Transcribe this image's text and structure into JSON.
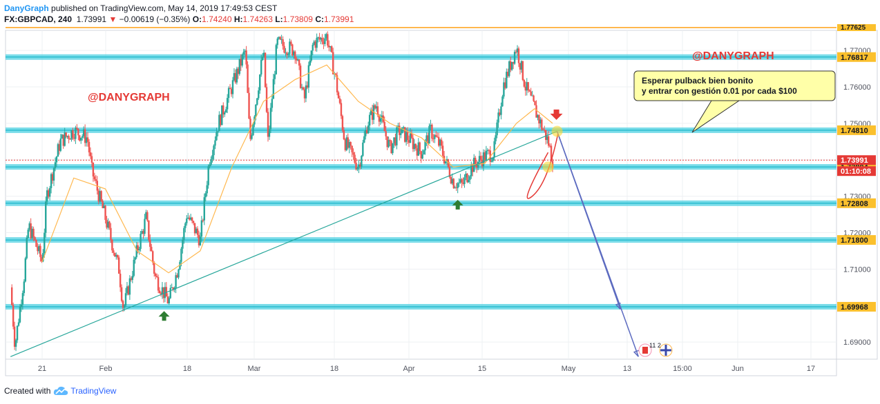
{
  "header": {
    "author": "DanyGraph",
    "published_text": "published on TradingView.com, May 14, 2019 17:49:53 CEST",
    "symbol": "FX:GBPCAD, 240",
    "last": "1.73991",
    "change": "−0.00619 (−0.35%)",
    "ohlc": {
      "o_label": "O:",
      "o": "1.74240",
      "h_label": "H:",
      "h": "1.74263",
      "l_label": "L:",
      "l": "1.73809",
      "c_label": "C:",
      "c": "1.73991"
    }
  },
  "footer": {
    "created_with": "Created with",
    "brand": "TradingView"
  },
  "colors": {
    "up": "#26a69a",
    "down": "#ef5350",
    "ma": "#ffb74d",
    "zone": "#4dd0e1",
    "trend": "#26a69a",
    "projection": "#5c6bc0",
    "price_line": "#e53935",
    "label_bg": "#ffffa8"
  },
  "chart_data": {
    "type": "candlestick",
    "symbol": "FX:GBPCAD",
    "timeframe": "240",
    "x_tick_labels": [
      "21",
      "Feb",
      "18",
      "Mar",
      "18",
      "Apr",
      "15",
      "May",
      "13",
      "15:00",
      "Jun",
      "17"
    ],
    "y_tick_labels": [
      "1.69000",
      "1.70000",
      "1.71000",
      "1.72000",
      "1.73000",
      "1.74000",
      "1.75000",
      "1.76000",
      "1.77000"
    ],
    "ylim": [
      1.6853,
      1.7755
    ],
    "horizontal_levels": [
      {
        "value": 1.76817,
        "label": "1.76817",
        "style": "zone"
      },
      {
        "value": 1.7481,
        "label": "1.74810",
        "style": "zone"
      },
      {
        "value": 1.73804,
        "label": "1.73804",
        "style": "zone"
      },
      {
        "value": 1.72808,
        "label": "1.72808",
        "style": "zone"
      },
      {
        "value": 1.718,
        "label": "1.71800",
        "style": "zone"
      },
      {
        "value": 1.69968,
        "label": "1.69968",
        "style": "zone"
      },
      {
        "value": 1.77625,
        "label": "1.77625",
        "style": "top-line"
      }
    ],
    "current_price": {
      "value": 1.73991,
      "label": "1.73991"
    },
    "countdown": "01:10:08",
    "price_path": [
      [
        "2019-01-14",
        1.705
      ],
      [
        "2019-01-15",
        1.689
      ],
      [
        "2019-01-17",
        1.708
      ],
      [
        "2019-01-18",
        1.722
      ],
      [
        "2019-01-21",
        1.712
      ],
      [
        "2019-01-22",
        1.73
      ],
      [
        "2019-01-25",
        1.745
      ],
      [
        "2019-01-28",
        1.748
      ],
      [
        "2019-01-31",
        1.746
      ],
      [
        "2019-02-01",
        1.737
      ],
      [
        "2019-02-04",
        1.724
      ],
      [
        "2019-02-07",
        1.71
      ],
      [
        "2019-02-08",
        1.699
      ],
      [
        "2019-02-11",
        1.715
      ],
      [
        "2019-02-13",
        1.724
      ],
      [
        "2019-02-15",
        1.708
      ],
      [
        "2019-02-18",
        1.701
      ],
      [
        "2019-02-20",
        1.71
      ],
      [
        "2019-02-22",
        1.725
      ],
      [
        "2019-02-25",
        1.718
      ],
      [
        "2019-02-27",
        1.74
      ],
      [
        "2019-03-01",
        1.75
      ],
      [
        "2019-03-04",
        1.76
      ],
      [
        "2019-03-07",
        1.77
      ],
      [
        "2019-03-08",
        1.745
      ],
      [
        "2019-03-11",
        1.77
      ],
      [
        "2019-03-12",
        1.745
      ],
      [
        "2019-03-14",
        1.772
      ],
      [
        "2019-03-18",
        1.77
      ],
      [
        "2019-03-20",
        1.756
      ],
      [
        "2019-03-22",
        1.772
      ],
      [
        "2019-03-25",
        1.774
      ],
      [
        "2019-03-27",
        1.762
      ],
      [
        "2019-03-29",
        1.745
      ],
      [
        "2019-04-01",
        1.738
      ],
      [
        "2019-04-03",
        1.75
      ],
      [
        "2019-04-05",
        1.755
      ],
      [
        "2019-04-08",
        1.743
      ],
      [
        "2019-04-10",
        1.748
      ],
      [
        "2019-04-12",
        1.746
      ],
      [
        "2019-04-15",
        1.742
      ],
      [
        "2019-04-17",
        1.748
      ],
      [
        "2019-04-19",
        1.744
      ],
      [
        "2019-04-22",
        1.734
      ],
      [
        "2019-04-24",
        1.733
      ],
      [
        "2019-04-26",
        1.738
      ],
      [
        "2019-04-29",
        1.741
      ],
      [
        "2019-05-01",
        1.742
      ],
      [
        "2019-05-03",
        1.76
      ],
      [
        "2019-05-06",
        1.771
      ],
      [
        "2019-05-08",
        1.76
      ],
      [
        "2019-05-10",
        1.754
      ],
      [
        "2019-05-13",
        1.745
      ],
      [
        "2019-05-14",
        1.7399
      ]
    ],
    "moving_average": [
      [
        "2019-01-21",
        1.712
      ],
      [
        "2019-01-28",
        1.735
      ],
      [
        "2019-02-04",
        1.732
      ],
      [
        "2019-02-11",
        1.715
      ],
      [
        "2019-02-18",
        1.709
      ],
      [
        "2019-02-25",
        1.715
      ],
      [
        "2019-03-04",
        1.738
      ],
      [
        "2019-03-11",
        1.756
      ],
      [
        "2019-03-18",
        1.762
      ],
      [
        "2019-03-25",
        1.766
      ],
      [
        "2019-04-01",
        1.756
      ],
      [
        "2019-04-08",
        1.75
      ],
      [
        "2019-04-15",
        1.746
      ],
      [
        "2019-04-22",
        1.738
      ],
      [
        "2019-04-29",
        1.739
      ],
      [
        "2019-05-06",
        1.75
      ],
      [
        "2019-05-10",
        1.754
      ],
      [
        "2019-05-14",
        1.75
      ]
    ],
    "trendline": {
      "from": [
        "2019-01-14",
        1.686
      ],
      "to": [
        "2019-05-15",
        1.7478
      ]
    },
    "arrows_up": [
      [
        "2019-02-17",
        1.6985
      ],
      [
        "2019-04-23",
        1.729
      ]
    ],
    "arrow_down": [
      "2019-05-15",
      1.75
    ],
    "projections": [
      {
        "from": [
          "2019-05-15",
          1.7478
        ],
        "to": [
          "2019-05-29",
          1.699
        ]
      },
      {
        "from": [
          "2019-05-15",
          1.7478
        ],
        "to": [
          "2019-06-02",
          1.686
        ]
      }
    ],
    "pullback_curve": {
      "start": [
        "2019-05-13",
        1.742
      ],
      "bottom": [
        "2019-05-15",
        1.73
      ],
      "end": [
        "2019-05-17",
        1.747
      ]
    },
    "markers": [
      [
        "2019-05-15",
        1.7478
      ],
      [
        "2019-05-15",
        1.738
      ]
    ],
    "annotations": {
      "watermark_left": "@DANYGRAPH",
      "watermark_right": "@DANYGRAPH",
      "callout_line1": "Esperar pulback bien bonito",
      "callout_line2": "y entrar con gestión 0.01 por cada $100"
    },
    "event_badge": "11 2"
  }
}
